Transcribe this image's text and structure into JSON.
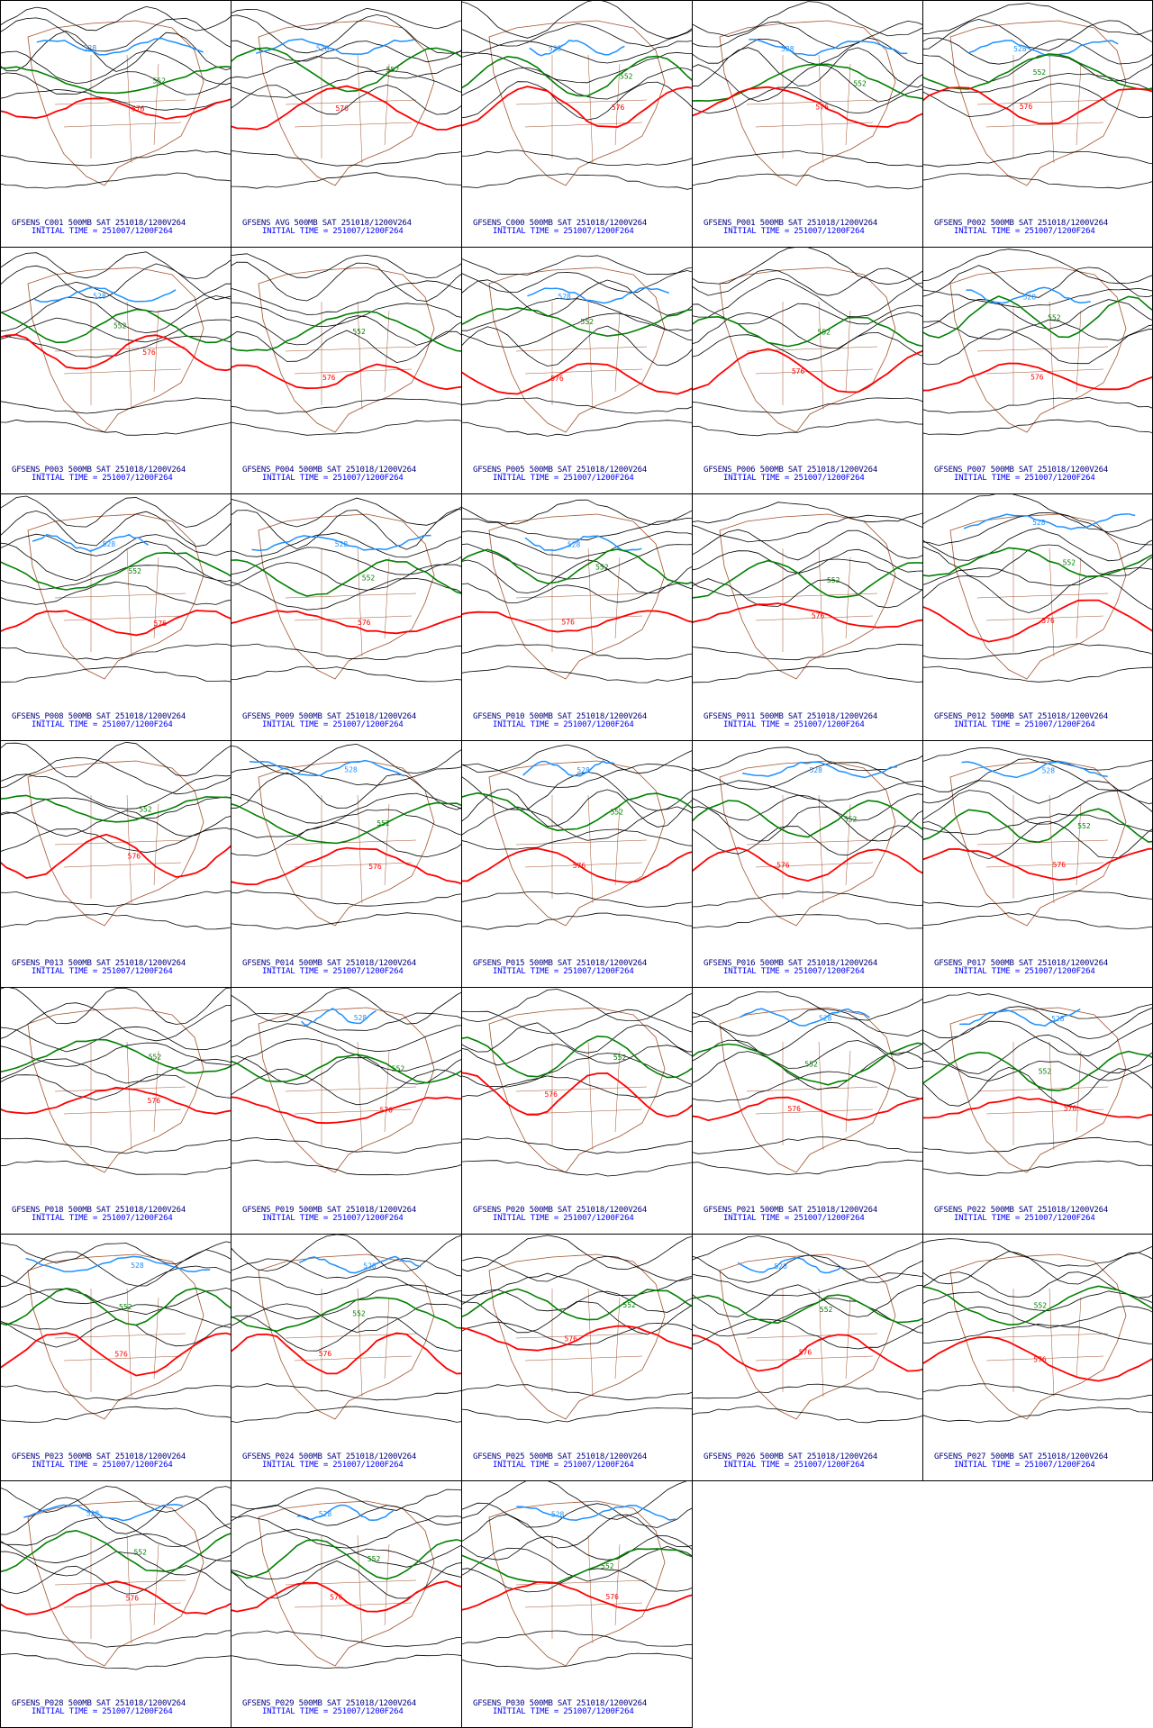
{
  "colors": {
    "contour": "#000000",
    "line_552": "#008000",
    "line_576": "#ff0000",
    "line_528": "#1e90ff",
    "map": "#a0522d",
    "caption_line1": "#000080",
    "caption_line2": "#0000ff"
  },
  "contour_labels": {
    "blue": "528",
    "green": "552",
    "red": "576"
  },
  "panels": [
    {
      "caption": "GFSENS_C001 500MB SAT 251018/1200V264",
      "init": "INITIAL TIME = 251007/1200F264"
    },
    {
      "caption": "GFSENS AVG 500MB SAT 251018/1200V264",
      "init": "INITIAL TIME = 251007/1200F264"
    },
    {
      "caption": "GFSENS_C000 500MB SAT 251018/1200V264",
      "init": "INITIAL TIME = 251007/1200F264"
    },
    {
      "caption": "GFSENS_P001 500MB SAT 251018/1200V264",
      "init": "INITIAL TIME = 251007/1200F264"
    },
    {
      "caption": "GFSENS_P002 500MB SAT 251018/1200V264",
      "init": "INITIAL TIME = 251007/1200F264"
    },
    {
      "caption": "GFSENS_P003 500MB SAT 251018/1200V264",
      "init": "INITIAL TIME = 251007/1200F264"
    },
    {
      "caption": "GFSENS_P004 500MB SAT 251018/1200V264",
      "init": "INITIAL TIME = 251007/1200F264"
    },
    {
      "caption": "GFSENS_P005 500MB SAT 251018/1200V264",
      "init": "INITIAL TIME = 251007/1200F264"
    },
    {
      "caption": "GFSENS_P006 500MB SAT 251018/1200V264",
      "init": "INITIAL TIME = 251007/1200F264"
    },
    {
      "caption": "GFSENS_P007 500MB SAT 251018/1200V264",
      "init": "INITIAL TIME = 251007/1200F264"
    },
    {
      "caption": "GFSENS_P008 500MB SAT 251018/1200V264",
      "init": "INITIAL TIME = 251007/1200F264"
    },
    {
      "caption": "GFSENS_P009 500MB SAT 251018/1200V264",
      "init": "INITIAL TIME = 251007/1200F264"
    },
    {
      "caption": "GFSENS_P010 500MB SAT 251018/1200V264",
      "init": "INITIAL TIME = 251007/1200F264"
    },
    {
      "caption": "GFSENS_P011 500MB SAT 251018/1200V264",
      "init": "INITIAL TIME = 251007/1200F264"
    },
    {
      "caption": "GFSENS_P012 500MB SAT 251018/1200V264",
      "init": "INITIAL TIME = 251007/1200F264"
    },
    {
      "caption": "GFSENS_P013 500MB SAT 251018/1200V264",
      "init": "INITIAL TIME = 251007/1200F264"
    },
    {
      "caption": "GFSENS_P014 500MB SAT 251018/1200V264",
      "init": "INITIAL TIME = 251007/1200F264"
    },
    {
      "caption": "GFSENS_P015 500MB SAT 251018/1200V264",
      "init": "INITIAL TIME = 251007/1200F264"
    },
    {
      "caption": "GFSENS_P016 500MB SAT 251018/1200V264",
      "init": "INITIAL TIME = 251007/1200F264"
    },
    {
      "caption": "GFSENS_P017 500MB SAT 251018/1200V264",
      "init": "INITIAL TIME = 251007/1200F264"
    },
    {
      "caption": "GFSENS_P018 500MB SAT 251018/1200V264",
      "init": "INITIAL TIME = 251007/1200F264"
    },
    {
      "caption": "GFSENS_P019 500MB SAT 251018/1200V264",
      "init": "INITIAL TIME = 251007/1200F264"
    },
    {
      "caption": "GFSENS_P020 500MB SAT 251018/1200V264",
      "init": "INITIAL TIME = 251007/1200F264"
    },
    {
      "caption": "GFSENS_P021 500MB SAT 251018/1200V264",
      "init": "INITIAL TIME = 251007/1200F264"
    },
    {
      "caption": "GFSENS_P022 500MB SAT 251018/1200V264",
      "init": "INITIAL TIME = 251007/1200F264"
    },
    {
      "caption": "GFSENS_P023 500MB SAT 251018/1200V264",
      "init": "INITIAL TIME = 251007/1200F264"
    },
    {
      "caption": "GFSENS_P024 500MB SAT 251018/1200V264",
      "init": "INITIAL TIME = 251007/1200F264"
    },
    {
      "caption": "GFSENS_P025 500MB SAT 251018/1200V264",
      "init": "INITIAL TIME = 251007/1200F264"
    },
    {
      "caption": "GFSENS_P026 500MB SAT 251018/1200V264",
      "init": "INITIAL TIME = 251007/1200F264"
    },
    {
      "caption": "GFSENS_P027 500MB SAT 251018/1200V264",
      "init": "INITIAL TIME = 251007/1200F264"
    },
    {
      "caption": "GFSENS_P028 500MB SAT 251018/1200V264",
      "init": "INITIAL TIME = 251007/1200F264"
    },
    {
      "caption": "GFSENS_P029 500MB SAT 251018/1200V264",
      "init": "INITIAL TIME = 251007/1200F264"
    },
    {
      "caption": "GFSENS_P030 500MB SAT 251018/1200V264",
      "init": "INITIAL TIME = 251007/1200F264"
    }
  ]
}
